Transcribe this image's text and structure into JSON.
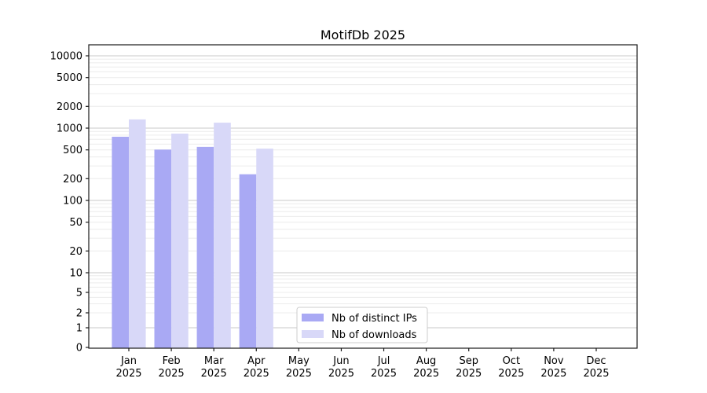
{
  "chart_data": {
    "type": "bar",
    "title": "MotifDb 2025",
    "categories": [
      "Jan",
      "Feb",
      "Mar",
      "Apr",
      "May",
      "Jun",
      "Jul",
      "Aug",
      "Sep",
      "Oct",
      "Nov",
      "Dec"
    ],
    "year_label": "2025",
    "series": [
      {
        "name": "Nb of distinct IPs",
        "color": "#a9a9f4",
        "values": [
          760,
          505,
          550,
          230,
          null,
          null,
          null,
          null,
          null,
          null,
          null,
          null
        ]
      },
      {
        "name": "Nb of downloads",
        "color": "#d8d8f8",
        "values": [
          1320,
          840,
          1190,
          520,
          null,
          null,
          null,
          null,
          null,
          null,
          null,
          null
        ]
      }
    ],
    "xlabel": "",
    "ylabel": "",
    "yscale": "symlog",
    "ylim": [
      0,
      12000
    ],
    "yticks": [
      0,
      1,
      2,
      5,
      10,
      20,
      50,
      100,
      200,
      500,
      1000,
      2000,
      5000,
      10000
    ],
    "ytick_labels": [
      "0",
      "1",
      "2",
      "5",
      "10",
      "20",
      "50",
      "100",
      "200",
      "500",
      "1000",
      "2000",
      "5000",
      "10000"
    ],
    "grid": "horizontal major at decades plus faint log minors",
    "legend_position": "inside, bottom center-left"
  },
  "colors": {
    "background": "#ffffff",
    "spine": "#1a1a1a",
    "major_grid": "#c9c9c9",
    "minor_grid": "#ececec",
    "legend_border": "#cccccc",
    "legend_background": "#ffffff",
    "text": "#000000"
  }
}
